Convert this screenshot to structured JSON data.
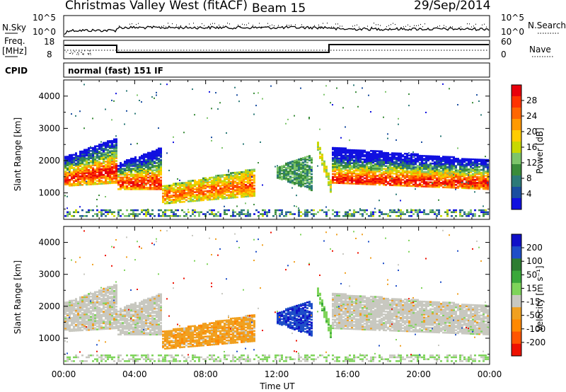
{
  "header": {
    "station": "Christmas Valley West (fitACF)",
    "beam": "Beam 15",
    "date": "29/Sep/2014"
  },
  "strips": {
    "nsky_label": "N.Sky",
    "nsky_ticks": [
      "10^5",
      "10^0"
    ],
    "nsearch_label": "N.Search",
    "nsearch_ticks": [
      "10^5",
      "10^0"
    ],
    "freq_label": "Freq.",
    "freq_unit": "[MHz]",
    "freq_ticks": [
      "18",
      "8"
    ],
    "nave_label": "Nave",
    "nave_ticks": [
      "60",
      "0"
    ],
    "cpid_label": "CPID",
    "cpid_text": "normal (fast) 151 IF"
  },
  "chart_data": [
    {
      "type": "heatmap",
      "name": "power",
      "ylabel": "Slant Range [km]",
      "yticks": [
        "4000",
        "3000",
        "2000",
        "1000"
      ],
      "ylim": [
        180,
        4500
      ],
      "colorbar": {
        "label": "Power [dB]",
        "ticks": [
          "28",
          "24",
          "20",
          "16",
          "12",
          "8",
          "4"
        ],
        "colors": [
          "#e8000b",
          "#ff3300",
          "#ff6600",
          "#ff9900",
          "#ffcc00",
          "#c8d800",
          "#7cc46a",
          "#3a8c3a",
          "#2c7a78",
          "#1a4ea0",
          "#1010e0"
        ]
      }
    },
    {
      "type": "heatmap",
      "name": "velocity",
      "ylabel": "Slant Range [km]",
      "yticks": [
        "4000",
        "3000",
        "2000",
        "1000"
      ],
      "ylim": [
        180,
        4500
      ],
      "colorbar": {
        "label": "Velocity [m s⁻¹]",
        "ticks": [
          "200",
          "100",
          "50",
          "15",
          "-15",
          "-50",
          "-100",
          "-200"
        ],
        "colors": [
          "#1010c8",
          "#1e4ec8",
          "#2e7d32",
          "#3aa83a",
          "#7ed45a",
          "#c8c8c0",
          "#f0a020",
          "#ff8800",
          "#ff5500",
          "#ee1100"
        ]
      }
    }
  ],
  "xaxis": {
    "label": "Time UT",
    "ticks": [
      "00:00",
      "04:00",
      "08:00",
      "12:00",
      "16:00",
      "20:00",
      "00:00"
    ]
  }
}
